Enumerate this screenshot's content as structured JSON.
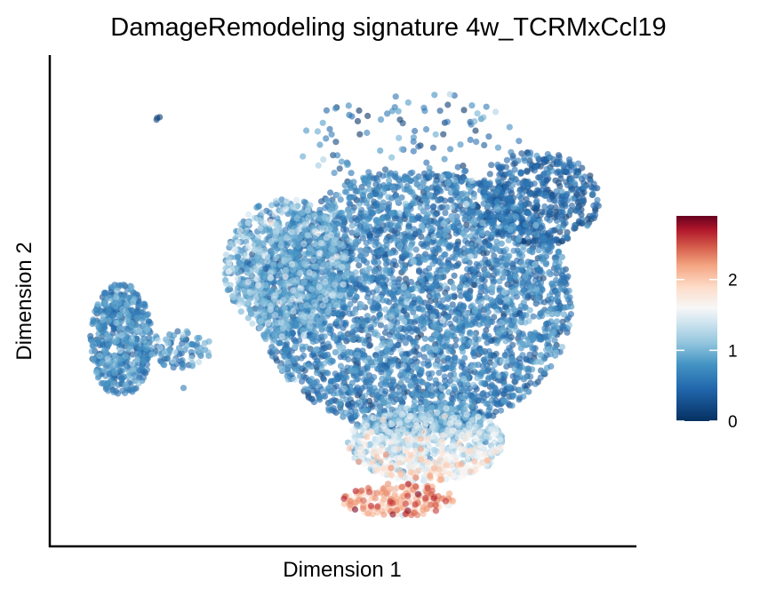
{
  "chart_data": {
    "type": "scatter",
    "title": "DamageRemodeling signature 4w_TCRMxCcl19",
    "xlabel": "Dimension 1",
    "ylabel": "Dimension 2",
    "x_ticks_shown": false,
    "y_ticks_shown": false,
    "grid": false,
    "point_opacity": 0.6,
    "colorbar": {
      "range": [
        0,
        2.9
      ],
      "ticks": [
        0,
        1,
        2
      ],
      "tick_labels": [
        "0",
        "1",
        "2"
      ],
      "stops": [
        {
          "value": 0.0,
          "color": "#053061"
        },
        {
          "value": 0.45,
          "color": "#2166ac"
        },
        {
          "value": 0.8,
          "color": "#4393c3"
        },
        {
          "value": 1.1,
          "color": "#92c5de"
        },
        {
          "value": 1.4,
          "color": "#d1e5f0"
        },
        {
          "value": 1.6,
          "color": "#f7f7f7"
        },
        {
          "value": 1.9,
          "color": "#fddbc7"
        },
        {
          "value": 2.2,
          "color": "#f4a582"
        },
        {
          "value": 2.45,
          "color": "#d6604d"
        },
        {
          "value": 2.7,
          "color": "#b2182b"
        },
        {
          "value": 2.9,
          "color": "#67001f"
        }
      ],
      "placement": "right"
    },
    "x_range": [
      0,
      100
    ],
    "y_range": [
      0,
      100
    ],
    "clusters": [
      {
        "name": "left-island",
        "cx": 10.5,
        "cy": 42,
        "rx": 5.5,
        "ry": 12,
        "n": 500,
        "score_mean": 0.6,
        "score_sd": 0.25
      },
      {
        "name": "bridge",
        "cx": 21,
        "cy": 40,
        "rx": 6,
        "ry": 4,
        "n": 90,
        "score_mean": 0.7,
        "score_sd": 0.3
      },
      {
        "name": "main-body",
        "cx": 63,
        "cy": 50,
        "rx": 28,
        "ry": 28,
        "n": 3600,
        "score_mean": 0.55,
        "score_sd": 0.25
      },
      {
        "name": "upper-left-arm",
        "cx": 40,
        "cy": 57,
        "rx": 11,
        "ry": 15,
        "n": 900,
        "score_mean": 0.85,
        "score_sd": 0.3
      },
      {
        "name": "top-right-lobe",
        "cx": 85,
        "cy": 72,
        "rx": 11,
        "ry": 10,
        "n": 500,
        "score_mean": 0.35,
        "score_sd": 0.2
      },
      {
        "name": "bottom-tail",
        "cx": 65,
        "cy": 20,
        "rx": 14,
        "ry": 8,
        "n": 800,
        "score_mean": 1.3,
        "score_sd": 0.3
      },
      {
        "name": "bottom-hotspot",
        "cx": 60,
        "cy": 8,
        "rx": 10,
        "ry": 3.5,
        "n": 230,
        "score_mean": 2.05,
        "score_sd": 0.3
      },
      {
        "name": "sparse-top",
        "cx": 62,
        "cy": 84,
        "rx": 20,
        "ry": 11,
        "n": 110,
        "score_mean": 0.5,
        "score_sd": 0.3
      },
      {
        "name": "outlier-top-left",
        "cx": 17.5,
        "cy": 89,
        "rx": 0.8,
        "ry": 0.5,
        "n": 3,
        "score_mean": 0.2,
        "score_sd": 0.05
      },
      {
        "name": "outlier-left-low",
        "cx": 21.5,
        "cy": 32,
        "rx": 0.3,
        "ry": 0.3,
        "n": 1,
        "score_mean": 0.6,
        "score_sd": 0.05
      }
    ]
  }
}
